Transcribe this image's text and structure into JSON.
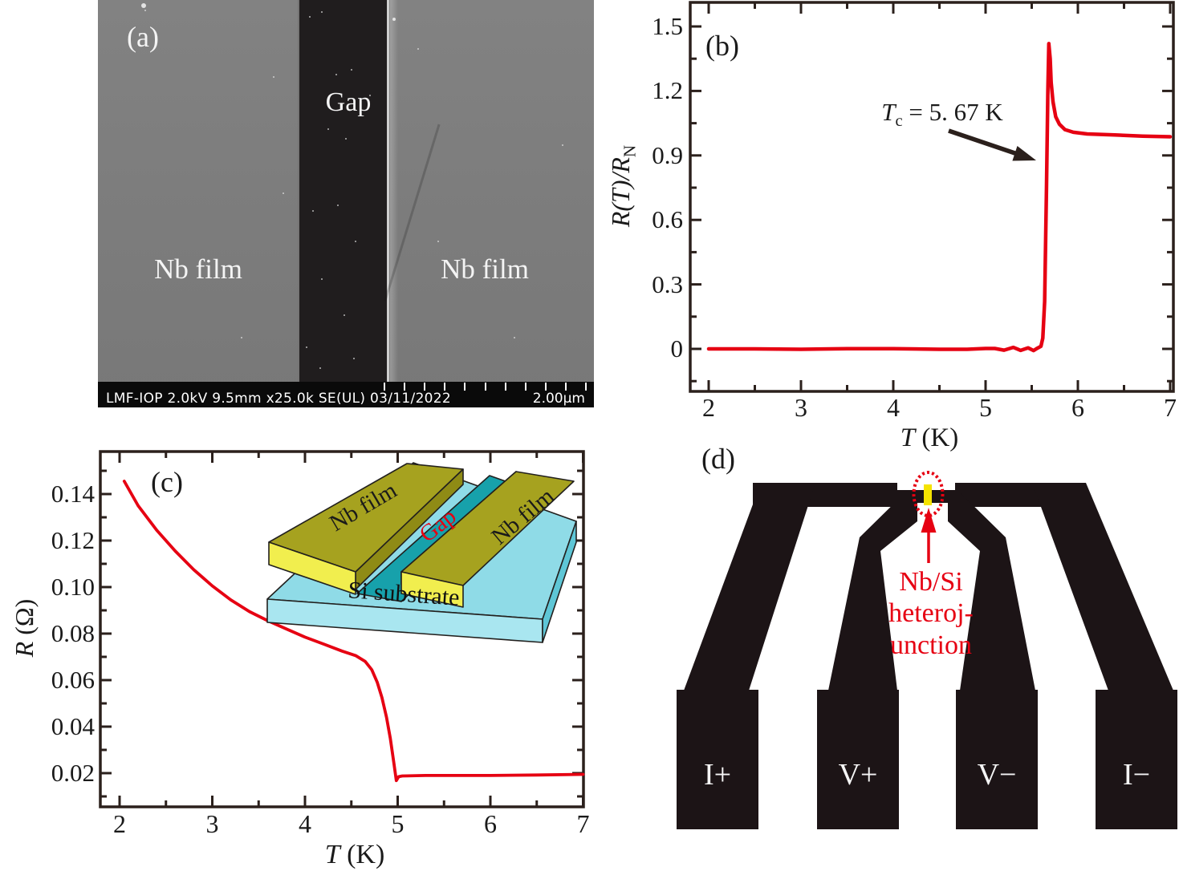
{
  "colors": {
    "curve": "#e60012",
    "axis": "#2b201c",
    "electrode_black": "#1c1416",
    "annotation_red": "#e60012",
    "junction_yellow": "#f5e300",
    "inset_film_top": "#a6a21f",
    "inset_film_front": "#f1ee4e",
    "inset_film_side": "#8f8b15",
    "inset_gap_teal": "#17a1ab",
    "inset_substrate_top": "#8fdbe7",
    "inset_substrate_front": "#a9e6f0",
    "inset_substrate_side": "#5ec6d6"
  },
  "panels": {
    "a": {
      "label": "(a)",
      "film_left": "Nb film",
      "gap": "Gap",
      "film_right": "Nb film",
      "info_text": "LMF-IOP 2.0kV 9.5mm x25.0k SE(UL) 03/11/2022",
      "scale_text": "2.00μm"
    },
    "b": {
      "label": "(b)",
      "ylabel_main": "R(T)/R",
      "ylabel_sub": "N",
      "xlabel_t": "T",
      "xlabel_rest": " (K)",
      "annotation_t": "T",
      "annotation_sub": "c",
      "annotation_rest": " = 5. 67 K"
    },
    "c": {
      "label": "(c)",
      "ylabel_r": "R",
      "ylabel_rest": " (Ω)",
      "xlabel_t": "T",
      "xlabel_rest": " (K)",
      "inset": {
        "film_left": "Nb film",
        "gap": "Gap",
        "film_right": "Nb film",
        "substrate": "Si substrate"
      }
    },
    "d": {
      "label": "(d)",
      "pads": [
        "I+",
        "V+",
        "V−",
        "I−"
      ],
      "annotation_lines": [
        "Nb/Si",
        "heteroj-",
        "unction"
      ]
    }
  },
  "chart_data": [
    {
      "id": "b",
      "type": "line",
      "title": "",
      "xlabel": "T (K)",
      "ylabel": "R(T)/R_N",
      "xlim": [
        1.8,
        7.03
      ],
      "ylim": [
        -0.2,
        1.62
      ],
      "grid": false,
      "xticks": [
        "2",
        "3",
        "4",
        "5",
        "6",
        "7"
      ],
      "yticks": [
        "0",
        "0.3",
        "0.6",
        "0.9",
        "1.2",
        "1.5"
      ],
      "annotation": {
        "text": "Tc = 5. 67 K",
        "points_to_T": 5.67
      },
      "series": [
        {
          "name": "R(T)/R_N",
          "color": "#e60012",
          "points": [
            [
              2.0,
              0
            ],
            [
              2.5,
              0
            ],
            [
              3.0,
              -0.002
            ],
            [
              3.5,
              0.001
            ],
            [
              4.0,
              0.001
            ],
            [
              4.5,
              -0.002
            ],
            [
              4.8,
              -0.002
            ],
            [
              5.0,
              0.002
            ],
            [
              5.1,
              0.002
            ],
            [
              5.2,
              -0.006
            ],
            [
              5.3,
              0.007
            ],
            [
              5.38,
              -0.007
            ],
            [
              5.46,
              0.005
            ],
            [
              5.52,
              -0.008
            ],
            [
              5.56,
              0.003
            ],
            [
              5.6,
              0.012
            ],
            [
              5.62,
              0.05
            ],
            [
              5.64,
              0.22
            ],
            [
              5.66,
              0.75
            ],
            [
              5.675,
              1.2
            ],
            [
              5.685,
              1.42
            ],
            [
              5.7,
              1.35
            ],
            [
              5.71,
              1.24
            ],
            [
              5.73,
              1.15
            ],
            [
              5.76,
              1.08
            ],
            [
              5.8,
              1.045
            ],
            [
              5.86,
              1.02
            ],
            [
              5.95,
              1.008
            ],
            [
              6.1,
              1.0
            ],
            [
              6.4,
              0.995
            ],
            [
              6.7,
              0.99
            ],
            [
              7.0,
              0.987
            ]
          ]
        }
      ]
    },
    {
      "id": "c",
      "type": "line",
      "title": "",
      "xlabel": "T (K)",
      "ylabel": "R (Ω)",
      "xlim": [
        1.79,
        7.0
      ],
      "ylim": [
        0.005,
        0.158
      ],
      "grid": false,
      "xticks": [
        "2",
        "3",
        "4",
        "5",
        "6",
        "7"
      ],
      "yticks": [
        "0.02",
        "0.04",
        "0.06",
        "0.08",
        "0.10",
        "0.12",
        "0.14"
      ],
      "series": [
        {
          "name": "R",
          "color": "#e60012",
          "points": [
            [
              2.05,
              0.1455
            ],
            [
              2.2,
              0.135
            ],
            [
              2.4,
              0.1245
            ],
            [
              2.6,
              0.1155
            ],
            [
              2.8,
              0.1075
            ],
            [
              3.0,
              0.1005
            ],
            [
              3.2,
              0.0945
            ],
            [
              3.4,
              0.0895
            ],
            [
              3.6,
              0.0855
            ],
            [
              3.8,
              0.082
            ],
            [
              4.0,
              0.0785
            ],
            [
              4.2,
              0.0755
            ],
            [
              4.4,
              0.0725
            ],
            [
              4.55,
              0.0705
            ],
            [
              4.65,
              0.068
            ],
            [
              4.72,
              0.0645
            ],
            [
              4.78,
              0.059
            ],
            [
              4.83,
              0.0525
            ],
            [
              4.88,
              0.044
            ],
            [
              4.92,
              0.035
            ],
            [
              4.96,
              0.024
            ],
            [
              4.985,
              0.0168
            ],
            [
              5.01,
              0.0185
            ],
            [
              5.05,
              0.0188
            ],
            [
              5.3,
              0.019
            ],
            [
              6.0,
              0.019
            ],
            [
              6.5,
              0.0192
            ],
            [
              7.0,
              0.0195
            ]
          ]
        }
      ]
    }
  ]
}
